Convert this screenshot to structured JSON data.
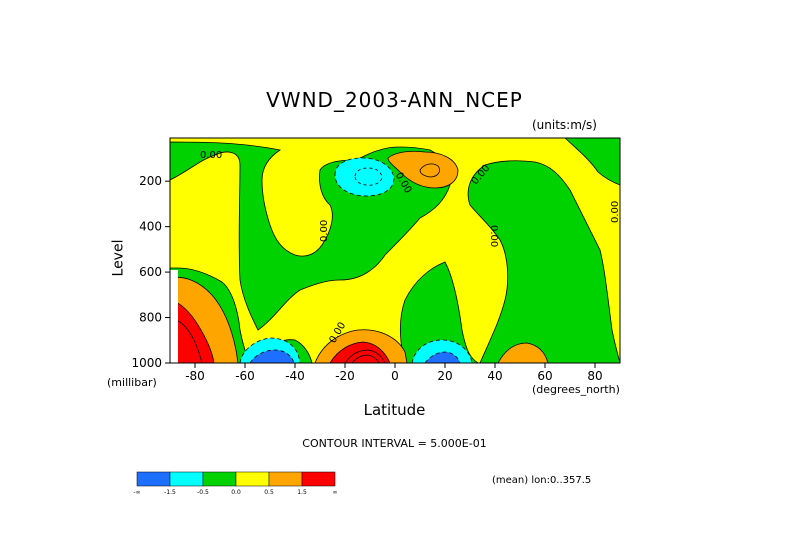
{
  "chart_data": {
    "type": "heatmap",
    "title": "VWND_2003-ANN_NCEP",
    "units": "(units:m/s)",
    "ylabel": "Level",
    "ylabel_units": "(millibar)",
    "xlabel": "Latitude",
    "xlabel_units": "(degrees_north)",
    "xlim": [
      -90,
      90
    ],
    "ylim": [
      1000,
      10
    ],
    "x_ticks": [
      -80,
      -60,
      -40,
      -20,
      0,
      20,
      40,
      60,
      80
    ],
    "y_ticks": [
      200,
      400,
      600,
      800,
      1000
    ],
    "contour_interval": "CONTOUR INTERVAL = 5.000E-01",
    "mean_note": "(mean) lon:0..357.5",
    "zero_contour_label": "0.00",
    "colorbar": {
      "labels": [
        "-∞",
        "-1.5",
        "-0.5",
        "0.0",
        "0.5",
        "1.5",
        "∞"
      ],
      "colors": [
        "#1e6eff",
        "#00ffff",
        "#00d200",
        "#ffff00",
        "#ffa500",
        "#ff0000"
      ]
    },
    "features": [
      {
        "name": "southern-high-latitude-positive",
        "lat": -85,
        "level": 900,
        "value": "> 1.5"
      },
      {
        "name": "southern-surface-negative",
        "lat": -55,
        "level": 980,
        "value": "< -1.5"
      },
      {
        "name": "tropical-surface-positive",
        "lat": -15,
        "level": 980,
        "value": "> 1.5"
      },
      {
        "name": "northern-tropical-surface-negative",
        "lat": 15,
        "level": 980,
        "value": "< -1.5"
      },
      {
        "name": "subtropical-surface-positive",
        "lat": 50,
        "level": 980,
        "value": "0.5 to 1.5"
      },
      {
        "name": "upper-tropical-negative",
        "lat": -12,
        "level": 200,
        "value": "-1.5 to -0.5"
      },
      {
        "name": "upper-tropical-positive",
        "lat": 16,
        "level": 180,
        "value": "0.5 to 1.5"
      }
    ]
  }
}
